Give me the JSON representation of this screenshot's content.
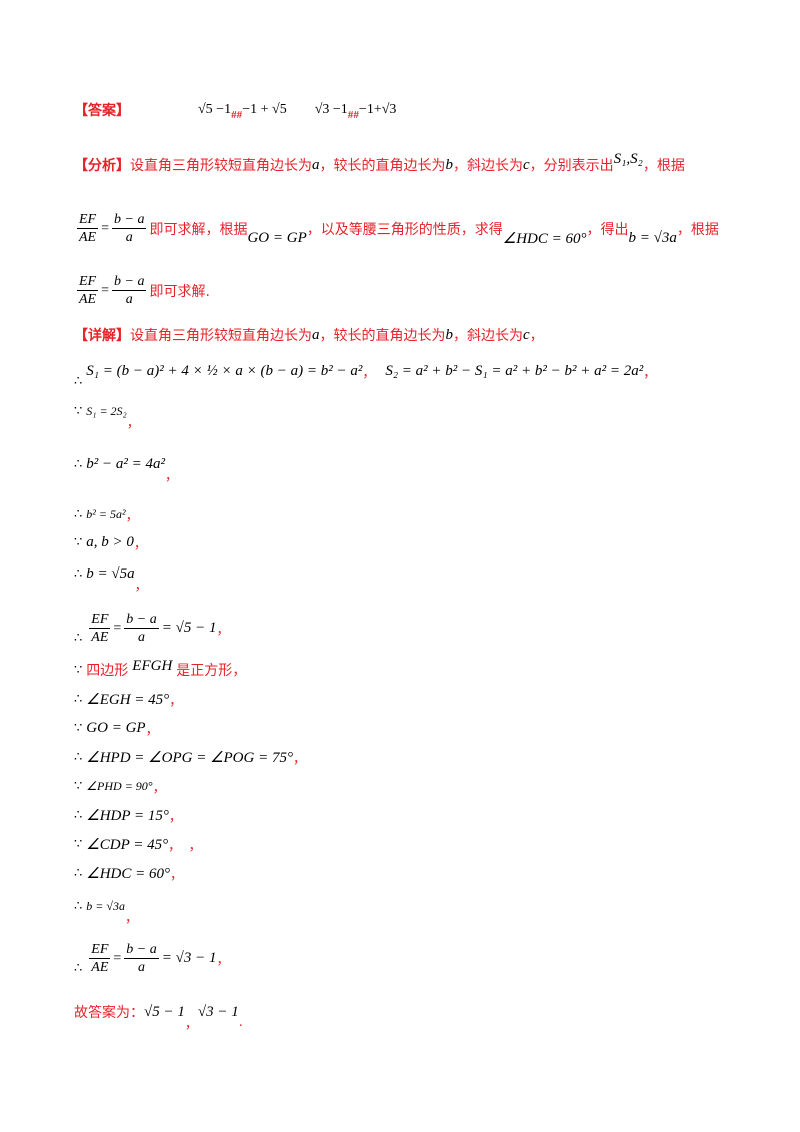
{
  "answer": {
    "label": "【答案】",
    "expr1": "√5 −1",
    "hash1": "##",
    "expr2": "−1 + √5",
    "expr3": "√3 −1",
    "hash2": "##",
    "expr4": "−1+√3"
  },
  "analysis": {
    "label": "【分析】",
    "line1_a": "设直角三角形较短直角边长为",
    "var_a": "a",
    "line1_b": "，较长的直角边长为",
    "var_b": "b",
    "line1_c": "，斜边长为",
    "var_c": "c",
    "line1_d": "，分别表示出",
    "s1s2": "S₁,S₂",
    "line1_e": "，根据",
    "frac_num_l": "EF",
    "frac_den_l": "AE",
    "frac_num_r": "b − a",
    "frac_den_r": "a",
    "line2_a": "即可求解，根据",
    "go_gp": "GO = GP",
    "line2_b": "，以及等腰三角形的性质，求得",
    "angle_hdc": "∠HDC = 60°",
    "line2_c": "，得出",
    "b_sqrt3a": "b = √3a",
    "line2_d": "，根据",
    "line3_a": "即可求解."
  },
  "detail": {
    "label": "【详解】",
    "line1_a": "设直角三角形较短直角边长为",
    "line1_b": "，较长的直角边长为",
    "line1_c": "，斜边长为",
    "line1_d": "，",
    "therefore": "∴",
    "because": "∵",
    "s1_expr": "S₁ = (b − a)² + 4 × ½ × a × (b − a) = b² − a²",
    "s2_expr": "S₂ = a² + b² − S₁ = a² + b² − b² + a² = 2a²",
    "step_s1_2s2": "S₁ = 2S₂",
    "step_b2a2": "b² − a² = 4a²",
    "step_b2_5a2": "b² = 5a²",
    "step_ab0": "a, b > 0",
    "step_b_sqrt5a": "b = √5a",
    "step_ratio1_tail": "= √5 − 1",
    "step_square_a": "四边形",
    "step_square_var": "EFGH",
    "step_square_b": "是正方形，",
    "step_egh": "∠EGH = 45°",
    "step_gogp": "GO = GP",
    "step_angles": "∠HPD = ∠OPG = ∠POG = 75°",
    "step_phd": "∠PHD = 90°",
    "step_hdp": "∠HDP = 15°",
    "step_cdp": "∠CDP = 45°",
    "step_hdc": "∠HDC = 60°",
    "step_b_sqrt3a": "b = √3a",
    "step_ratio2_tail": "= √3 − 1",
    "final_a": "故答案为：",
    "final_v1": "√5 − 1",
    "final_v2": "√3 − 1",
    "comma": "，",
    "comma2": "，，",
    "period": "."
  }
}
